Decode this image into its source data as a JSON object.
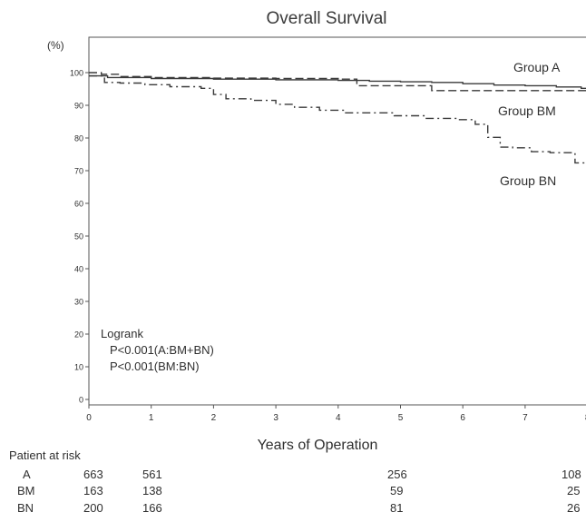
{
  "chart_data": {
    "type": "line",
    "title": "Overall Survival",
    "ylabel": "(%)",
    "xlabel": "Years of Operation",
    "xlim": [
      0,
      8
    ],
    "ylim": [
      0,
      100
    ],
    "xticks": [
      0,
      1,
      2,
      3,
      4,
      5,
      6,
      7,
      8
    ],
    "yticks": [
      0,
      10,
      20,
      30,
      40,
      50,
      60,
      70,
      80,
      90,
      100
    ],
    "grid": false,
    "series": [
      {
        "name": "Group A",
        "line_style": "solid",
        "x": [
          0,
          0.3,
          1.0,
          2.0,
          3.0,
          4.0,
          4.5,
          5.0,
          5.5,
          6.0,
          6.5,
          7.0,
          7.5,
          7.9,
          8.0
        ],
        "y": [
          99,
          98.5,
          98.2,
          98,
          97.8,
          97.6,
          97.4,
          97.2,
          97,
          96.6,
          96.2,
          96,
          95.6,
          95.2,
          94.5
        ]
      },
      {
        "name": "Group BM",
        "line_style": "dashed",
        "x": [
          0,
          0.2,
          0.5,
          1.0,
          2.0,
          3.0,
          4.0,
          4.3,
          5.0,
          5.4,
          5.5,
          6.0,
          7.0,
          8.0
        ],
        "y": [
          100,
          99.5,
          98.8,
          98.5,
          98.3,
          98.2,
          98,
          96,
          96,
          96,
          94.5,
          94.5,
          94.5,
          94.5
        ]
      },
      {
        "name": "Group BN",
        "line_style": "dash-dot",
        "x": [
          0,
          0.25,
          0.5,
          0.9,
          1.3,
          1.8,
          2.0,
          2.2,
          2.6,
          3.0,
          3.3,
          3.7,
          4.1,
          4.9,
          5.4,
          5.9,
          6.2,
          6.4,
          6.6,
          6.8,
          7.1,
          7.4,
          7.8,
          8.0
        ],
        "y": [
          99,
          97,
          96.8,
          96.3,
          95.7,
          95.2,
          93.3,
          92,
          91.5,
          90.3,
          89.4,
          88.5,
          87.7,
          86.8,
          86,
          85.6,
          84.2,
          80.2,
          77.2,
          77,
          75.8,
          75.5,
          72.4,
          72
        ]
      }
    ],
    "annotations": [
      "Logrank",
      "P<0.001(A:BM+BN)",
      "P<0.001(BM:BN)"
    ],
    "risk_table": {
      "header": "Patient at risk",
      "rows": [
        {
          "group": "A",
          "values": [
            "663",
            "561",
            "256",
            "108"
          ]
        },
        {
          "group": "BM",
          "values": [
            "163",
            "138",
            "59",
            "25"
          ]
        },
        {
          "group": "BN",
          "values": [
            "200",
            "166",
            "81",
            "26"
          ]
        }
      ]
    }
  },
  "colors": {
    "line": "#3a3a3a",
    "axis": "#555555",
    "text": "#2f2f2f"
  }
}
